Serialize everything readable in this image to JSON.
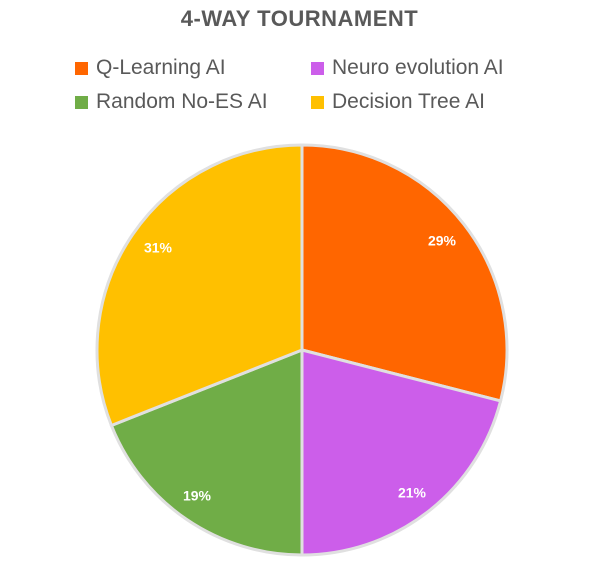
{
  "chart_data": {
    "type": "pie",
    "title": "4-WAY TOURNAMENT",
    "categories": [
      "Q-Learning AI",
      "Neuro evolution AI",
      "Random No-ES AI",
      "Decision Tree AI"
    ],
    "values": [
      29,
      21,
      19,
      31
    ],
    "data_labels": [
      "29%",
      "21%",
      "19%",
      "31%"
    ],
    "colors": [
      "#FF6600",
      "#CC5EEA",
      "#70AD47",
      "#FFC000"
    ],
    "legend_position": "top",
    "start_angle_deg": 0,
    "direction": "clockwise"
  }
}
